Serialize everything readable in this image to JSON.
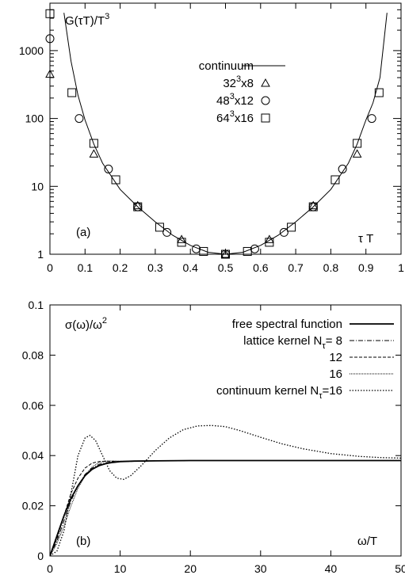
{
  "chart_data": [
    {
      "type": "line",
      "panel_label": "(a)",
      "ylabel": "G(τT)/T³",
      "xlabel": "τ T",
      "xlim": [
        0,
        1
      ],
      "ylim": [
        1,
        5000
      ],
      "yscale": "log",
      "x_ticks": [
        "0",
        "0.1",
        "0.2",
        "0.3",
        "0.4",
        "0.5",
        "0.6",
        "0.7",
        "0.8",
        "0.9",
        "1"
      ],
      "y_ticks": [
        "1",
        "10",
        "100",
        "1000"
      ],
      "legend_position": "top-center",
      "series": [
        {
          "name": "continuum",
          "style": "solid-line",
          "x": [
            0.04,
            0.06,
            0.08,
            0.1,
            0.125,
            0.15,
            0.2,
            0.25,
            0.3,
            0.35,
            0.4,
            0.45,
            0.5,
            0.55,
            0.6,
            0.65,
            0.7,
            0.75,
            0.8,
            0.85,
            0.875,
            0.9,
            0.92,
            0.94,
            0.96
          ],
          "y": [
            3600,
            700,
            220,
            95,
            42,
            22,
            9,
            5,
            3,
            1.9,
            1.35,
            1.07,
            1.0,
            1.07,
            1.35,
            1.9,
            3,
            5,
            9,
            22,
            42,
            95,
            170,
            400,
            3600
          ]
        },
        {
          "name": "32³x8",
          "marker": "triangle",
          "x": [
            0,
            0.125,
            0.25,
            0.375,
            0.5,
            0.625,
            0.75,
            0.875
          ],
          "y": [
            450,
            30,
            5.2,
            1.65,
            1.0,
            1.65,
            5.2,
            30
          ]
        },
        {
          "name": "48³x12",
          "marker": "circle",
          "x": [
            0,
            0.0833,
            0.1667,
            0.25,
            0.3333,
            0.4167,
            0.5,
            0.5833,
            0.6667,
            0.75,
            0.8333,
            0.9167
          ],
          "y": [
            1500,
            100,
            18,
            5.0,
            2.1,
            1.2,
            1.0,
            1.2,
            2.1,
            5.0,
            18,
            100
          ]
        },
        {
          "name": "64³x16",
          "marker": "square",
          "x": [
            0,
            0.0625,
            0.125,
            0.1875,
            0.25,
            0.3125,
            0.375,
            0.4375,
            0.5,
            0.5625,
            0.625,
            0.6875,
            0.75,
            0.8125,
            0.875,
            0.9375
          ],
          "y": [
            3500,
            240,
            43,
            12.5,
            5.0,
            2.5,
            1.5,
            1.1,
            1.0,
            1.1,
            1.5,
            2.5,
            5.0,
            12.5,
            43,
            240
          ]
        }
      ]
    },
    {
      "type": "line",
      "panel_label": "(b)",
      "ylabel": "σ(ω)/ω²",
      "xlabel": "ω/T",
      "xlim": [
        0,
        50
      ],
      "ylim": [
        0,
        0.1
      ],
      "x_ticks": [
        "0",
        "10",
        "20",
        "30",
        "40",
        "50"
      ],
      "y_ticks": [
        "0",
        "0.02",
        "0.04",
        "0.06",
        "0.08",
        "0.1"
      ],
      "legend_position": "top-right",
      "series": [
        {
          "name": "free spectral function",
          "legend_text": "free spectral function",
          "style": "solid-thick",
          "x": [
            0,
            1,
            2,
            3,
            4,
            5,
            6,
            7,
            8,
            9,
            10,
            12,
            15,
            20,
            30,
            40,
            50
          ],
          "y": [
            0,
            0.008,
            0.016,
            0.023,
            0.028,
            0.032,
            0.0345,
            0.036,
            0.0368,
            0.0373,
            0.0376,
            0.0378,
            0.0379,
            0.038,
            0.038,
            0.038,
            0.038
          ]
        },
        {
          "name": "lattice kernel N_τ= 8",
          "legend_text": "lattice kernel N",
          "legend_sub": "τ",
          "legend_suffix": "= 8",
          "style": "dash-dot",
          "x": [
            0,
            1,
            2,
            3,
            4,
            5,
            6,
            7,
            8,
            9,
            10,
            12,
            15,
            20,
            30,
            40,
            50
          ],
          "y": [
            0,
            0.006,
            0.014,
            0.022,
            0.028,
            0.0325,
            0.035,
            0.0365,
            0.0372,
            0.0375,
            0.0377,
            0.0378,
            0.0379,
            0.038,
            0.038,
            0.038,
            0.038
          ]
        },
        {
          "name": "12",
          "legend_text": "12",
          "style": "dashed",
          "x": [
            0,
            1,
            2,
            3,
            4,
            5,
            6,
            7,
            8,
            9,
            10,
            12,
            15,
            20,
            30,
            40,
            50
          ],
          "y": [
            0,
            0.007,
            0.016,
            0.025,
            0.031,
            0.035,
            0.037,
            0.0376,
            0.0378,
            0.0377,
            0.0376,
            0.0377,
            0.0379,
            0.038,
            0.038,
            0.038,
            0.038
          ]
        },
        {
          "name": "16",
          "legend_text": "16",
          "style": "fine-dotted",
          "x": [
            0,
            1,
            2,
            3,
            4,
            5,
            6,
            7,
            8,
            9,
            10,
            12,
            15,
            20,
            30,
            40,
            50
          ],
          "y": [
            0,
            0.005,
            0.012,
            0.02,
            0.027,
            0.032,
            0.0355,
            0.0372,
            0.0378,
            0.0379,
            0.0378,
            0.0378,
            0.0379,
            0.038,
            0.038,
            0.038,
            0.038
          ]
        },
        {
          "name": "continuum kernel N_τ=16",
          "legend_text": "continuum kernel N",
          "legend_sub": "τ",
          "legend_suffix": "=16",
          "style": "dotted",
          "x": [
            0,
            1,
            2,
            3,
            4,
            5,
            5.7,
            6.5,
            7.5,
            8.5,
            9.5,
            10.5,
            11.5,
            13,
            15,
            17,
            19,
            21,
            23,
            25,
            27,
            30,
            33,
            36,
            40,
            44,
            47,
            50
          ],
          "y": [
            0,
            0.002,
            0.01,
            0.025,
            0.04,
            0.047,
            0.048,
            0.046,
            0.04,
            0.034,
            0.031,
            0.0305,
            0.032,
            0.036,
            0.042,
            0.047,
            0.0503,
            0.0518,
            0.052,
            0.0515,
            0.05,
            0.0473,
            0.0447,
            0.0427,
            0.0408,
            0.0397,
            0.0392,
            0.039
          ]
        }
      ]
    }
  ]
}
